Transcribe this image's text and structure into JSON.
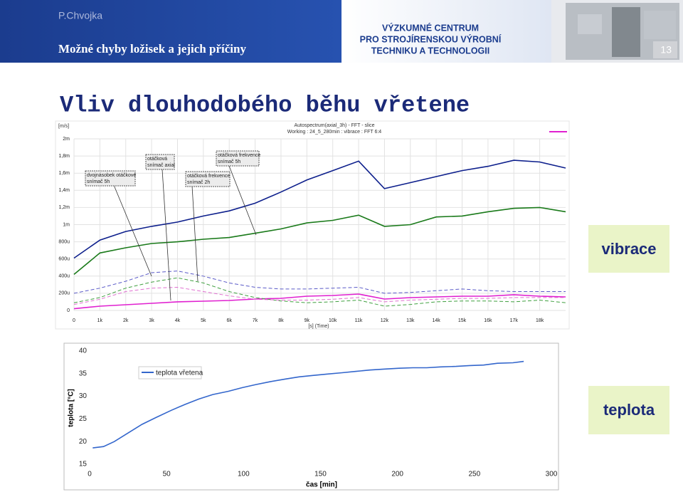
{
  "header": {
    "author": "P.Chvojka",
    "subtitle": "Možné chyby ložisek a jejich příčiny",
    "institute": [
      "VÝZKUMNÉ CENTRUM",
      "PRO STROJÍRENSKOU VÝROBNÍ",
      "TECHNIKU A TECHNOLOGII"
    ],
    "page": "13"
  },
  "title": "Vliv dlouhodobého běhu vřetene",
  "labels": {
    "vibration": "vibrace",
    "temperature": "teplota"
  },
  "chart_data": [
    {
      "type": "line",
      "title": "Autospectrum(axial_3h) - FFT - slice",
      "subtitle": "Working : 24_5_280min : vibrace : FFT 6:4",
      "ylabel": "[m/s]",
      "xlabel": "[s] (Time)",
      "grid": true,
      "annotations": [
        [
          "otáčková",
          "snímač axial"
        ],
        [
          "otáčková frekvence",
          "snímač 5h"
        ],
        [
          "dvojnásobek otáčkové",
          "snímač 5h"
        ],
        [
          "otáčková frekvence",
          "snímač 2h"
        ]
      ],
      "xlim": [
        0,
        19000
      ],
      "ylim": [
        0,
        0.002
      ],
      "xticks": [
        0,
        {
          "value": 1000,
          "label": "1k"
        },
        {
          "value": 2000,
          "label": "2k"
        },
        {
          "value": 3000,
          "label": "3k"
        },
        {
          "value": 4000,
          "label": "4k"
        },
        {
          "value": 5000,
          "label": "5k"
        },
        {
          "value": 6000,
          "label": "6k"
        },
        {
          "value": 7000,
          "label": "7k"
        },
        {
          "value": 8000,
          "label": "8k"
        },
        {
          "value": 9000,
          "label": "9k"
        },
        {
          "value": 10000,
          "label": "10k"
        },
        {
          "value": 11000,
          "label": "11k"
        },
        {
          "value": 12000,
          "label": "12k"
        },
        {
          "value": 13000,
          "label": "13k"
        },
        {
          "value": 14000,
          "label": "14k"
        },
        {
          "value": 15000,
          "label": "15k"
        },
        {
          "value": 16000,
          "label": "16k"
        },
        {
          "value": 17000,
          "label": "17k"
        },
        {
          "value": 18000,
          "label": "18k"
        }
      ],
      "yticks": [
        0,
        {
          "value": 0.0002,
          "label": "200u"
        },
        {
          "value": 0.0004,
          "label": "400u"
        },
        {
          "value": 0.0006,
          "label": "600u"
        },
        {
          "value": 0.0008,
          "label": "800u"
        },
        {
          "value": 0.001,
          "label": "1m"
        },
        {
          "value": 0.0012,
          "label": "1,2m"
        },
        {
          "value": 0.0014,
          "label": "1,4m"
        },
        {
          "value": 0.0016,
          "label": "1,6m"
        },
        {
          "value": 0.0018,
          "label": "1,8m"
        },
        {
          "value": 0.002,
          "label": "2m"
        }
      ],
      "x": [
        0,
        1000,
        2000,
        3000,
        4000,
        5000,
        6000,
        7000,
        8000,
        9000,
        10000,
        11000,
        12000,
        13000,
        14000,
        15000,
        16000,
        17000,
        18000,
        19000
      ],
      "series": [
        {
          "color": "#0d1f8c",
          "dashed": false,
          "values": [
            0.00061,
            0.00082,
            0.00092,
            0.00098,
            0.00103,
            0.0011,
            0.00116,
            0.00125,
            0.00138,
            0.00152,
            0.00163,
            0.00174,
            0.00142,
            0.00149,
            0.00156,
            0.00163,
            0.00168,
            0.00175,
            0.00173,
            0.00166
          ]
        },
        {
          "color": "#1a7a1a",
          "dashed": false,
          "values": [
            0.00042,
            0.00067,
            0.00073,
            0.00078,
            0.0008,
            0.00083,
            0.00085,
            0.0009,
            0.00095,
            0.00102,
            0.00105,
            0.00111,
            0.00098,
            0.001,
            0.00109,
            0.0011,
            0.00115,
            0.00119,
            0.0012,
            0.00115
          ]
        },
        {
          "color": "#e020d0",
          "dashed": false,
          "values": [
            2e-05,
            5e-05,
            6.6e-05,
            8.3e-05,
            0.0001,
            0.000108,
            0.000116,
            0.000133,
            0.000141,
            0.000166,
            0.000174,
            0.000191,
            0.000133,
            0.000149,
            0.000158,
            0.000166,
            0.000166,
            0.000183,
            0.000166,
            0.000158
          ]
        },
        {
          "color": "#5a5ac8",
          "dashed": true,
          "values": [
            0.0002,
            0.00026,
            0.00034,
            0.00044,
            0.00046,
            0.0004,
            0.00032,
            0.00027,
            0.00025,
            0.00025,
            0.00026,
            0.00027,
            0.0002,
            0.00021,
            0.00023,
            0.00025,
            0.00023,
            0.00022,
            0.00022,
            0.00022
          ]
        },
        {
          "color": "#40a040",
          "dashed": true,
          "values": [
            9e-05,
            0.00015,
            0.00026,
            0.00033,
            0.00038,
            0.00032,
            0.00022,
            0.00015,
            0.00011,
            9e-05,
            0.0001,
            0.00012,
            5e-05,
            7e-05,
            0.0001,
            0.00011,
            0.00011,
            0.0001,
            0.00012,
            9e-05
          ]
        },
        {
          "color": "#e070d0",
          "dashed": true,
          "values": [
            7e-05,
            0.00013,
            0.00022,
            0.00026,
            0.00027,
            0.00022,
            0.00017,
            0.00013,
            0.00012,
            0.00012,
            0.00013,
            0.00015,
            0.0001,
            0.00012,
            0.00013,
            0.00014,
            0.00014,
            0.00015,
            0.00015,
            0.00015
          ]
        }
      ]
    },
    {
      "type": "line",
      "ylabel": "teplota [°C]",
      "xlabel": "čas [min]",
      "grid": false,
      "xlim": [
        0,
        300
      ],
      "ylim": [
        15,
        40
      ],
      "xticks": [
        0,
        50,
        100,
        150,
        200,
        250,
        300
      ],
      "yticks": [
        15,
        20,
        25,
        30,
        35,
        40
      ],
      "x": [
        2,
        9,
        16,
        25,
        34,
        43,
        53,
        62,
        71,
        80,
        90,
        99,
        108,
        117,
        127,
        136,
        145,
        154,
        164,
        173,
        182,
        191,
        201,
        210,
        219,
        228,
        238,
        247,
        256,
        265,
        275,
        282
      ],
      "series": [
        {
          "name": "teplota vřetena",
          "color": "#3366cc",
          "dashed": false,
          "values": [
            18.6,
            18.9,
            20.0,
            21.9,
            23.8,
            25.3,
            26.9,
            28.2,
            29.4,
            30.4,
            31.1,
            31.9,
            32.6,
            33.2,
            33.8,
            34.3,
            34.6,
            34.9,
            35.2,
            35.5,
            35.8,
            36.0,
            36.2,
            36.3,
            36.3,
            36.5,
            36.6,
            36.8,
            36.9,
            37.3,
            37.4,
            37.7
          ]
        }
      ]
    }
  ]
}
